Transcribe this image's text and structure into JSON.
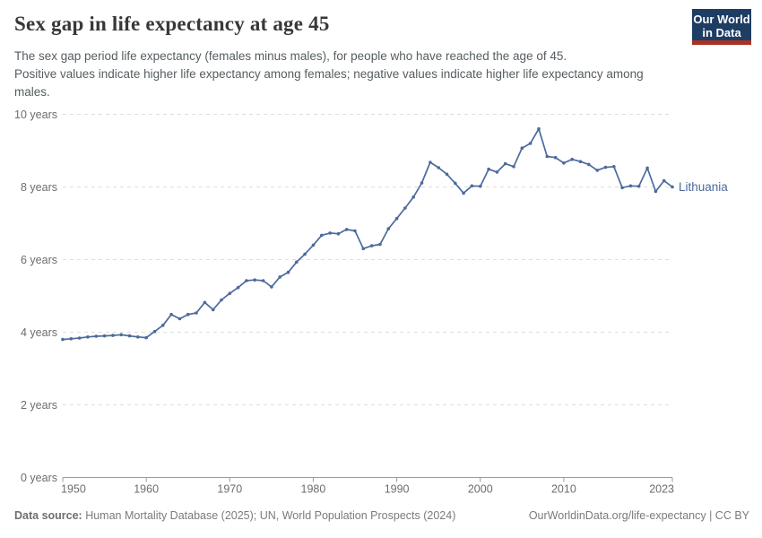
{
  "header": {
    "title": "Sex gap in life expectancy at age 45",
    "subtitle_lines": [
      "The sex gap period life expectancy (females minus males), for people who have reached the age of 45.",
      "Positive values indicate higher life expectancy among females; negative values indicate higher life expectancy among males."
    ],
    "logo": {
      "line1": "Our World",
      "line2": "in Data"
    }
  },
  "footer": {
    "datasource_label": "Data source:",
    "datasource_value": " Human Mortality Database (2025); UN, World Population Prospects (2024)",
    "attribution": "OurWorldinData.org/life-expectancy | CC BY"
  },
  "chart_data": {
    "type": "line",
    "title": "Sex gap in life expectancy at age 45",
    "entity_label": "Lithuania",
    "x": [
      1950,
      1951,
      1952,
      1953,
      1954,
      1955,
      1956,
      1957,
      1958,
      1959,
      1960,
      1961,
      1962,
      1963,
      1964,
      1965,
      1966,
      1967,
      1968,
      1969,
      1970,
      1971,
      1972,
      1973,
      1974,
      1975,
      1976,
      1977,
      1978,
      1979,
      1980,
      1981,
      1982,
      1983,
      1984,
      1985,
      1986,
      1987,
      1988,
      1989,
      1990,
      1991,
      1992,
      1993,
      1994,
      1995,
      1996,
      1997,
      1998,
      1999,
      2000,
      2001,
      2002,
      2003,
      2004,
      2005,
      2006,
      2007,
      2008,
      2009,
      2010,
      2011,
      2012,
      2013,
      2014,
      2015,
      2016,
      2017,
      2018,
      2019,
      2020,
      2021,
      2022,
      2023
    ],
    "series": [
      {
        "name": "Lithuania",
        "values": [
          3.8,
          3.82,
          3.84,
          3.87,
          3.89,
          3.9,
          3.91,
          3.93,
          3.9,
          3.87,
          3.85,
          4.02,
          4.19,
          4.49,
          4.37,
          4.49,
          4.53,
          4.82,
          4.62,
          4.89,
          5.07,
          5.23,
          5.42,
          5.44,
          5.42,
          5.25,
          5.52,
          5.65,
          5.93,
          6.15,
          6.4,
          6.67,
          6.73,
          6.71,
          6.83,
          6.79,
          6.3,
          6.38,
          6.42,
          6.85,
          7.13,
          7.42,
          7.72,
          8.11,
          8.68,
          8.53,
          8.35,
          8.1,
          7.83,
          8.03,
          8.02,
          8.49,
          8.41,
          8.64,
          8.56,
          9.07,
          9.2,
          9.6,
          8.84,
          8.81,
          8.66,
          8.76,
          8.7,
          8.62,
          8.46,
          8.54,
          8.56,
          7.98,
          8.03,
          8.02,
          8.52,
          7.88,
          8.17,
          8.0
        ]
      }
    ],
    "xlabel": "",
    "ylabel": "",
    "xlim": [
      1950,
      2023
    ],
    "ylim": [
      0,
      10
    ],
    "yticks": [
      0,
      2,
      4,
      6,
      8,
      10
    ],
    "ytick_labels": [
      "0 years",
      "2 years",
      "4 years",
      "6 years",
      "8 years",
      "10 years"
    ],
    "xticks": [
      1950,
      1960,
      1970,
      1980,
      1990,
      2000,
      2010,
      2023
    ],
    "grid": "horizontal-dashed",
    "legend_position": "end-of-line-label",
    "line_color": "#4C6A9C"
  },
  "colors": {
    "line": "#4C6A9C",
    "grid": "#dedede",
    "axis": "#9b9b9b",
    "tick_text": "#6d6d6d",
    "title": "#383838",
    "subtitle": "#555d61",
    "footer_text": "#7b7b7b",
    "logo_navy": "#1d3d63",
    "logo_red": "#a93226"
  }
}
